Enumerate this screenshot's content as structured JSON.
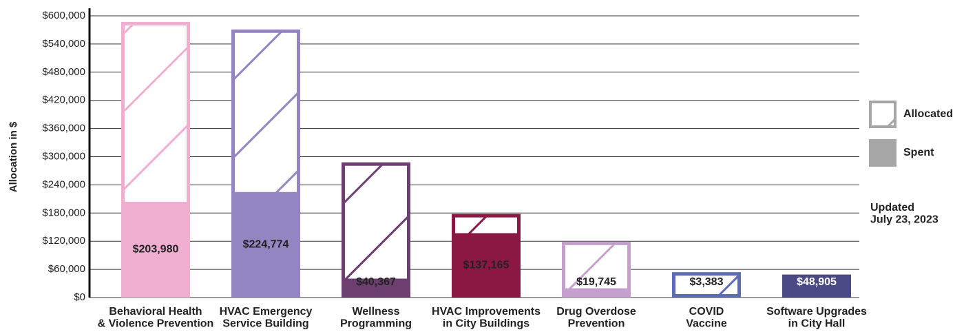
{
  "chart_data": {
    "type": "bar",
    "y_label": "Allocation in $",
    "categories": [
      "Behavioral Health\n& Violence Prevention",
      "HVAC Emergency\nService Building",
      "Wellness\nProgramming",
      "HVAC Improvements\nin City Buildings",
      "Drug Overdose\nPrevention",
      "COVID\nVaccine",
      "Software Upgrades\nin City Hall"
    ],
    "colors": [
      "#f0aed0",
      "#9385c1",
      "#6d3f70",
      "#8b1843",
      "#c5a0cd",
      "#5b6bb5",
      "#4b4a86"
    ],
    "series": [
      {
        "name": "Allocated",
        "color": "#a6a6a6",
        "values": [
          587000,
          571000,
          288000,
          178000,
          119000,
          54000,
          48905
        ]
      },
      {
        "name": "Spent",
        "color": "#a6a6a6",
        "values": [
          203980,
          224774,
          40367,
          137165,
          19745,
          3383,
          48905
        ],
        "value_labels": [
          "$203,980",
          "$224,774",
          "$40,367",
          "$137,165",
          "$19,745",
          "$3,383",
          "$48,905"
        ]
      }
    ],
    "ylim": [
      0,
      600000
    ],
    "yticks": [
      {
        "value": 0,
        "label": "$0"
      },
      {
        "value": 60000,
        "label": "$60,000"
      },
      {
        "value": 120000,
        "label": "$120,000"
      },
      {
        "value": 180000,
        "label": "$180,000"
      },
      {
        "value": 240000,
        "label": "$240,000"
      },
      {
        "value": 300000,
        "label": "$300,000"
      },
      {
        "value": 360000,
        "label": "$360,000"
      },
      {
        "value": 420000,
        "label": "$420,000"
      },
      {
        "value": 480000,
        "label": "$480,000"
      },
      {
        "value": 540000,
        "label": "$540,000"
      },
      {
        "value": 600000,
        "label": "$600,000"
      }
    ],
    "grid": true,
    "legend": "right",
    "annotation": "Updated\nJuly 23, 2023"
  }
}
